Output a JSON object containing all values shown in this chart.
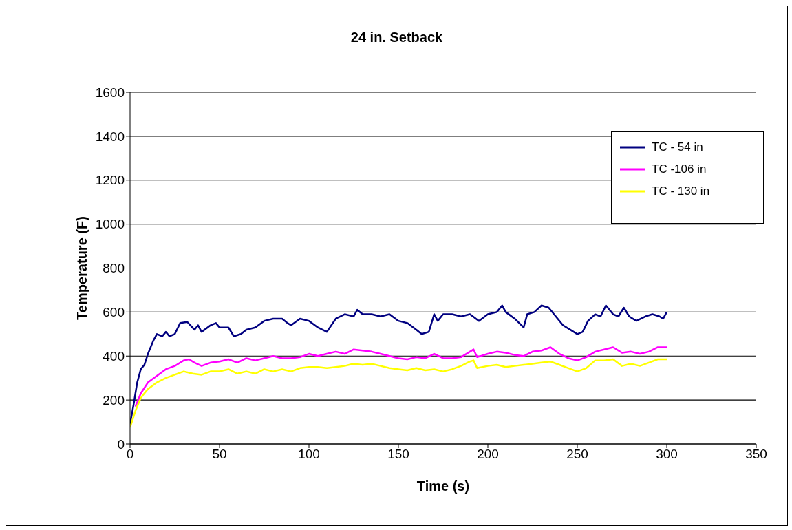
{
  "chart_data": {
    "type": "line",
    "title": "24 in. Setback",
    "xlabel": "Time (s)",
    "ylabel": "Temperature (F)",
    "xlim": [
      0,
      350
    ],
    "xticks": [
      0,
      50,
      100,
      150,
      200,
      250,
      300,
      350
    ],
    "ylim": [
      0,
      1600
    ],
    "yticks": [
      0,
      200,
      400,
      600,
      800,
      1000,
      1200,
      1400,
      1600
    ],
    "grid": "y",
    "legend": "top right",
    "marker": "none",
    "line_style": "solid",
    "series": [
      {
        "name": "TC - 54 in",
        "color": "#000080",
        "x": [
          0,
          2,
          4,
          6,
          8,
          10,
          13,
          15,
          18,
          20,
          22,
          25,
          28,
          32,
          36,
          38,
          40,
          45,
          48,
          50,
          55,
          58,
          62,
          65,
          70,
          75,
          80,
          85,
          88,
          90,
          95,
          100,
          105,
          110,
          115,
          120,
          125,
          127,
          130,
          135,
          140,
          145,
          150,
          155,
          160,
          163,
          167,
          170,
          172,
          175,
          180,
          185,
          190,
          195,
          200,
          205,
          208,
          210,
          215,
          220,
          222,
          226,
          230,
          234,
          238,
          242,
          246,
          250,
          253,
          256,
          260,
          263,
          266,
          270,
          273,
          276,
          279,
          283,
          288,
          292,
          296,
          298,
          300
        ],
        "values": [
          90,
          180,
          280,
          340,
          360,
          410,
          470,
          500,
          490,
          510,
          490,
          500,
          550,
          555,
          520,
          540,
          510,
          540,
          550,
          530,
          530,
          490,
          500,
          520,
          530,
          560,
          570,
          570,
          550,
          540,
          570,
          560,
          530,
          510,
          570,
          590,
          580,
          610,
          590,
          590,
          580,
          590,
          560,
          550,
          520,
          500,
          510,
          590,
          560,
          590,
          590,
          580,
          590,
          560,
          590,
          600,
          630,
          600,
          570,
          530,
          590,
          600,
          630,
          620,
          580,
          540,
          520,
          500,
          510,
          560,
          590,
          580,
          630,
          590,
          580,
          620,
          580,
          560,
          580,
          590,
          580,
          570,
          600
        ]
      },
      {
        "name": "TC -106 in",
        "color": "#ff00ff",
        "x": [
          3,
          6,
          10,
          15,
          20,
          25,
          30,
          33,
          36,
          40,
          45,
          50,
          55,
          60,
          65,
          70,
          75,
          80,
          85,
          90,
          95,
          100,
          105,
          110,
          115,
          120,
          125,
          130,
          135,
          140,
          145,
          150,
          155,
          160,
          165,
          170,
          175,
          180,
          185,
          190,
          192,
          194,
          200,
          205,
          210,
          215,
          220,
          225,
          230,
          235,
          240,
          245,
          250,
          255,
          260,
          265,
          270,
          275,
          280,
          285,
          290,
          295,
          300
        ],
        "values": [
          170,
          230,
          280,
          310,
          340,
          355,
          380,
          385,
          370,
          355,
          370,
          375,
          385,
          370,
          390,
          380,
          390,
          400,
          390,
          390,
          395,
          410,
          400,
          410,
          420,
          410,
          430,
          425,
          420,
          410,
          400,
          390,
          385,
          395,
          390,
          410,
          390,
          390,
          395,
          420,
          430,
          395,
          410,
          420,
          415,
          405,
          400,
          420,
          425,
          440,
          410,
          390,
          380,
          395,
          420,
          430,
          440,
          415,
          420,
          410,
          420,
          440,
          440
        ]
      },
      {
        "name": "TC - 130 in",
        "color": "#ffff00",
        "x": [
          0,
          3,
          6,
          10,
          15,
          20,
          25,
          30,
          35,
          40,
          45,
          50,
          55,
          60,
          65,
          70,
          75,
          80,
          85,
          90,
          95,
          100,
          105,
          110,
          115,
          120,
          125,
          130,
          135,
          140,
          145,
          150,
          155,
          160,
          165,
          170,
          175,
          180,
          185,
          190,
          192,
          194,
          200,
          205,
          210,
          215,
          220,
          225,
          230,
          235,
          240,
          245,
          250,
          255,
          260,
          265,
          270,
          275,
          280,
          285,
          290,
          295,
          300
        ],
        "values": [
          75,
          150,
          210,
          250,
          280,
          300,
          315,
          330,
          320,
          315,
          330,
          330,
          340,
          320,
          330,
          320,
          340,
          330,
          340,
          330,
          345,
          350,
          350,
          345,
          350,
          355,
          365,
          360,
          365,
          355,
          345,
          340,
          335,
          345,
          335,
          340,
          330,
          340,
          355,
          375,
          380,
          345,
          355,
          360,
          350,
          355,
          360,
          365,
          370,
          375,
          360,
          345,
          330,
          345,
          380,
          380,
          385,
          355,
          365,
          355,
          370,
          385,
          385
        ]
      }
    ]
  }
}
